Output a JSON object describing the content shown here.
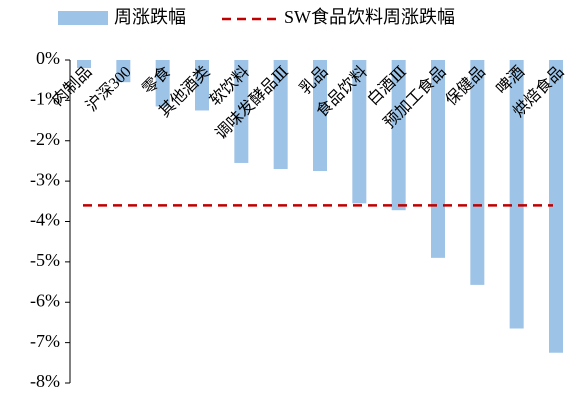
{
  "chart_data": {
    "type": "bar",
    "categories": [
      "肉制品",
      "沪深300",
      "零食",
      "其他酒类",
      "软饮料",
      "调味发酵品Ⅲ",
      "乳品",
      "食品饮料",
      "白酒Ⅲ",
      "预加工食品",
      "保健品",
      "啤酒",
      "烘焙食品"
    ],
    "series": [
      {
        "name": "周涨跌幅",
        "color": "#9dc3e6",
        "values": [
          -0.2,
          -0.55,
          -1.15,
          -1.25,
          -2.55,
          -2.7,
          -2.75,
          -3.55,
          -3.72,
          -4.9,
          -5.57,
          -6.65,
          -7.25
        ]
      }
    ],
    "reference": {
      "name": "SW食品饮料周涨跌幅",
      "value": -3.6,
      "color": "#c00000"
    },
    "ylim": [
      -8,
      0
    ],
    "yticks": [
      {
        "value": 0,
        "label": "0%"
      },
      {
        "value": -1,
        "label": "-1%"
      },
      {
        "value": -2,
        "label": "-2%"
      },
      {
        "value": -3,
        "label": "-3%"
      },
      {
        "value": -4,
        "label": "-4%"
      },
      {
        "value": -5,
        "label": "-5%"
      },
      {
        "value": -6,
        "label": "-6%"
      },
      {
        "value": -7,
        "label": "-7%"
      },
      {
        "value": -8,
        "label": "-8%"
      }
    ],
    "legend": "top"
  }
}
